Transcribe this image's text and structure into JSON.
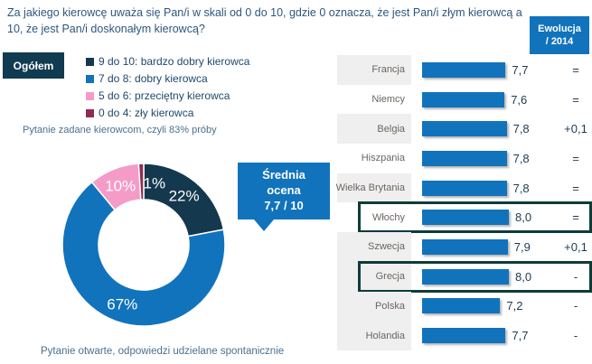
{
  "title": "Za jakiego kierowcę uważa się Pan/i w skali od 0 do 10, gdzie 0 oznacza, że jest Pan/i złym kierowcą a 10, że jest Pan/i doskonałym kierowcą?",
  "group_label": "Ogółem",
  "evolution_header": "Ewolucja\n/ 2014",
  "note_drivers": "Pytanie zadane kierowcom, czyli 83% próby",
  "note_open": "Pytanie otwarte, odpowiedzi udzielane spontanicznie",
  "callout": "Średnia\nocena\n7,7 / 10",
  "colors": {
    "accent_blue": "#1173bc",
    "dark_navy": "#14384e",
    "pink": "#f49bc8",
    "maroon": "#8e2c52",
    "group_box": "#113b50",
    "highlight_border": "#0e3c38",
    "title_text": "#2e567e",
    "note_text": "#4a708e",
    "row_shade": "#efefef"
  },
  "chart_data": [
    {
      "type": "pie",
      "subtype": "donut",
      "legend_position": "top-left",
      "slices": [
        {
          "label": "9 do 10: bardzo dobry kierowca",
          "value": 22,
          "pct_label": "22%",
          "color": "#14384e"
        },
        {
          "label": "7 do 8: dobry kierowca",
          "value": 67,
          "pct_label": "67%",
          "color": "#1173bc"
        },
        {
          "label": "5 do 6: przeciętny kierowca",
          "value": 10,
          "pct_label": "10%",
          "color": "#f49bc8"
        },
        {
          "label": "0 do 4: zły kierowca",
          "value": 1,
          "pct_label": "1%",
          "color": "#8e2c52"
        }
      ],
      "annotation": "Średnia ocena 7,7 / 10"
    },
    {
      "type": "bar",
      "orientation": "horizontal",
      "categories": [
        "Francja",
        "Niemcy",
        "Belgia",
        "Hiszpania",
        "Wielka Brytania",
        "Włochy",
        "Szwecja",
        "Grecja",
        "Polska",
        "Holandia"
      ],
      "values": [
        7.7,
        7.6,
        7.8,
        7.8,
        7.8,
        8.0,
        7.9,
        8.0,
        7.2,
        7.7
      ],
      "value_labels": [
        "7,7",
        "7,6",
        "7,8",
        "7,8",
        "7,8",
        "8,0",
        "7,9",
        "8,0",
        "7,2",
        "7,7"
      ],
      "evolution": [
        "=",
        "=",
        "+0,1",
        "=",
        "=",
        "=",
        "+0,1",
        "-",
        "-",
        "-"
      ],
      "evolution_header": "Ewolucja / 2014",
      "highlighted_categories": [
        "Włochy",
        "Grecja"
      ],
      "xlim": [
        0,
        10
      ],
      "bar_color": "#1173bc"
    }
  ]
}
